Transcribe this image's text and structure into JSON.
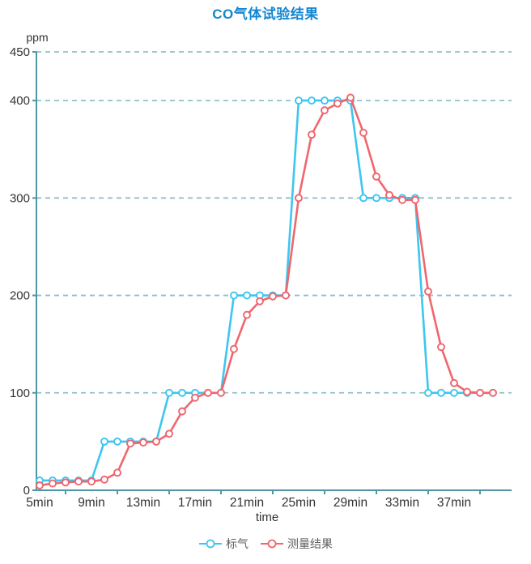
{
  "chart_data": {
    "type": "line",
    "title": "CO气体试验结果",
    "ylabel": "ppm",
    "xlabel": "time",
    "ylim": [
      0,
      450
    ],
    "grid": "dashed horizontal",
    "legend_position": "bottom-center",
    "y_ticks": [
      0,
      100,
      200,
      300,
      400,
      450
    ],
    "x_tick_labels": [
      "5min",
      "9min",
      "13min",
      "17min",
      "21min",
      "25min",
      "29min",
      "33min",
      "37min"
    ],
    "x": [
      5,
      6,
      7,
      8,
      9,
      10,
      11,
      12,
      13,
      14,
      15,
      16,
      17,
      18,
      19,
      20,
      21,
      22,
      23,
      24,
      25,
      26,
      27,
      28,
      29,
      30,
      31,
      32,
      33,
      34,
      35,
      36,
      37,
      38,
      39,
      40
    ],
    "series": [
      {
        "name": "标气",
        "color": "#3cc6f0",
        "values": [
          10,
          10,
          10,
          10,
          10,
          50,
          50,
          50,
          50,
          50,
          100,
          100,
          100,
          100,
          100,
          200,
          200,
          200,
          200,
          200,
          400,
          400,
          400,
          400,
          400,
          300,
          300,
          300,
          300,
          300,
          100,
          100,
          100,
          100,
          100,
          100
        ]
      },
      {
        "name": "测量结果",
        "color": "#f0666e",
        "values": [
          5,
          7,
          8,
          9,
          9,
          11,
          18,
          48,
          49,
          50,
          58,
          81,
          95,
          100,
          100,
          145,
          180,
          194,
          199,
          200,
          300,
          365,
          390,
          397,
          403,
          367,
          322,
          303,
          298,
          298,
          204,
          147,
          110,
          101,
          100,
          100
        ]
      }
    ],
    "colors": {
      "title": "#1287d1",
      "axis": "#4e96a3",
      "gridline": "#8fc0c7",
      "tick_text": "#333333",
      "legend_text": "#5e5e5e"
    }
  }
}
